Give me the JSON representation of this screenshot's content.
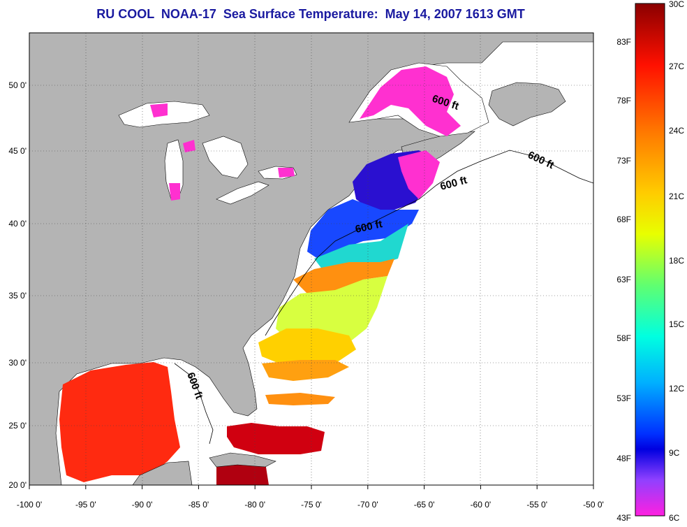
{
  "title": "RU COOL  NOAA-17  Sea Surface Temperature:  May 14, 2007 1613 GMT",
  "map": {
    "lon_labels": [
      "-100 0'",
      "-95 0'",
      "-90 0'",
      "-85 0'",
      "-80 0'",
      "-75 0'",
      "-70 0'",
      "-65 0'",
      "-60 0'",
      "-55 0'",
      "-50 0'"
    ],
    "lat_labels": [
      "50 0'",
      "45 0'",
      "40 0'",
      "35 0'",
      "30 0'",
      "25 0'",
      "20 0'"
    ],
    "contour_labels": [
      "600 ft",
      "600 ft",
      "600 ft",
      "600 ft",
      "600 ft"
    ],
    "land_color": "#b4b4b4"
  },
  "colorbar": {
    "celsius_labels": [
      "30C",
      "27C",
      "24C",
      "21C",
      "18C",
      "15C",
      "12C",
      "9C",
      "6C"
    ],
    "fahrenheit_labels": [
      "83F",
      "78F",
      "73F",
      "68F",
      "63F",
      "58F",
      "53F",
      "48F",
      "43F"
    ],
    "gradient_colors": [
      "#a00000",
      "#ff1a00",
      "#ff8c00",
      "#ffd800",
      "#e8ff00",
      "#80ff60",
      "#00ffd0",
      "#00c8ff",
      "#0050ff",
      "#0000e0",
      "#8040ff",
      "#ff20e0"
    ]
  }
}
